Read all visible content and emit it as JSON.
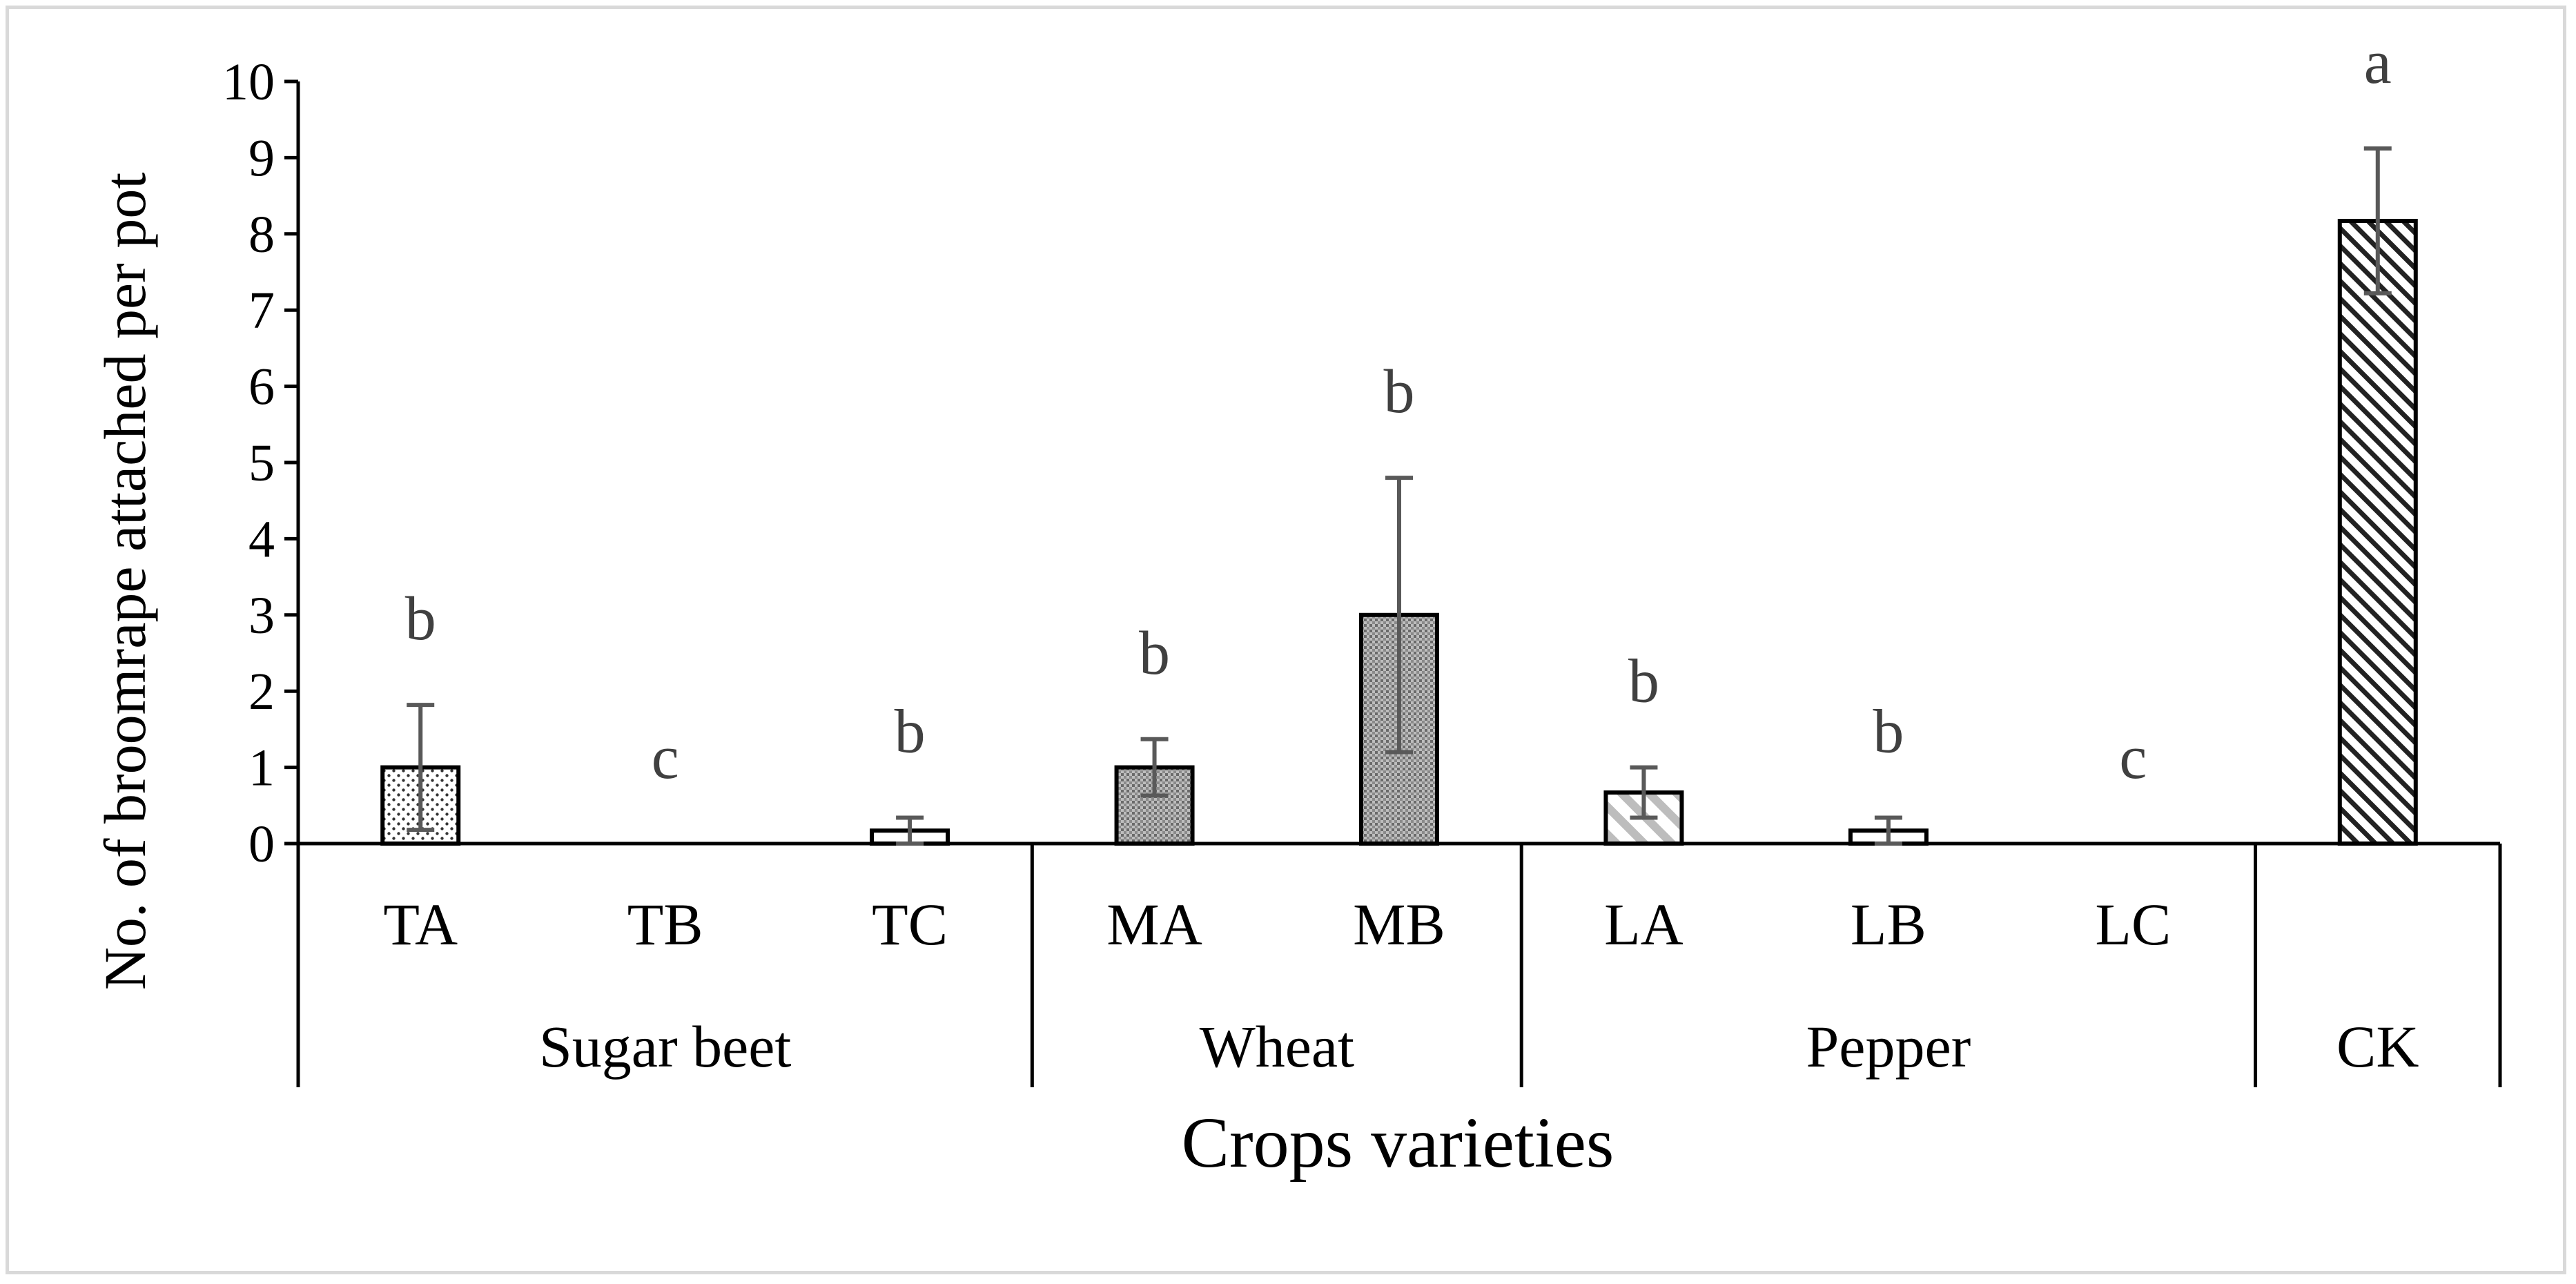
{
  "chart_data": {
    "type": "bar",
    "title": "",
    "xlabel": "Crops varieties",
    "ylabel": "No. of broomrape attached per pot",
    "ylim": [
      0,
      10
    ],
    "yticks": [
      0,
      1,
      2,
      3,
      4,
      5,
      6,
      7,
      8,
      9,
      10
    ],
    "grid": false,
    "legend": "none",
    "categories": [
      "TA",
      "TB",
      "TC",
      "MA",
      "MB",
      "LA",
      "LB",
      "LC",
      ""
    ],
    "values": [
      1.0,
      0.0,
      0.17,
      1.0,
      3.0,
      0.67,
      0.17,
      0.0,
      8.17
    ],
    "errors": [
      0.82,
      0.0,
      0.17,
      0.37,
      1.8,
      0.33,
      0.17,
      0.0,
      0.95
    ],
    "significance_letters": [
      "b",
      "c",
      "b",
      "b",
      "b",
      "b",
      "b",
      "c",
      "a"
    ],
    "patterns": [
      "dots",
      "none",
      "none",
      "grid",
      "grid",
      "diagonal-light",
      "none",
      "none",
      "diagonal-dense"
    ],
    "groups": [
      {
        "name": "Sugar beet",
        "members": [
          "TA",
          "TB",
          "TC"
        ]
      },
      {
        "name": "Wheat",
        "members": [
          "MA",
          "MB"
        ]
      },
      {
        "name": "Pepper",
        "members": [
          "LA",
          "LB",
          "LC"
        ]
      },
      {
        "name": "CK",
        "members": [
          ""
        ]
      }
    ],
    "colors": {
      "axis": "#000000",
      "error_bar": "#595959",
      "letter": "#404040",
      "bar_fill": "#ffffff"
    }
  }
}
